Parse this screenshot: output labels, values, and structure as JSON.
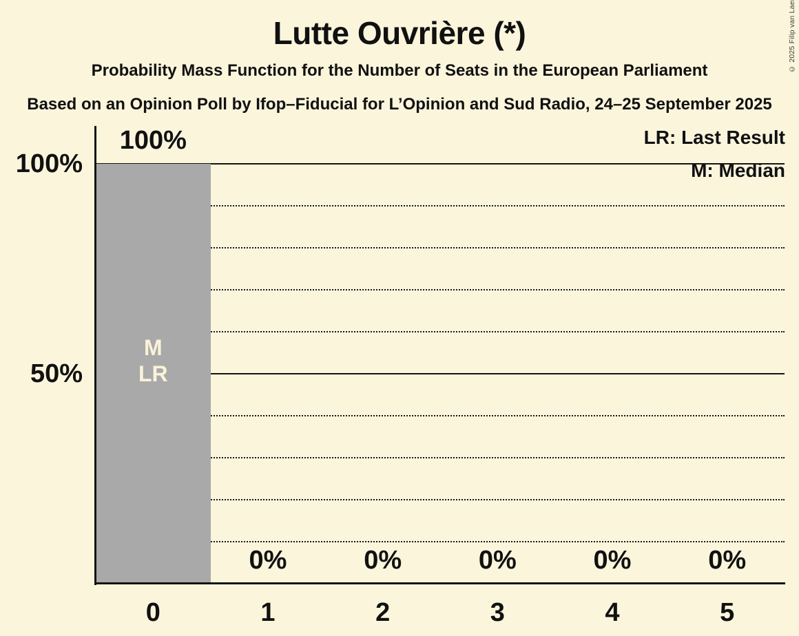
{
  "title": "Lutte Ouvrière (*)",
  "subtitle": "Probability Mass Function for the Number of Seats in the European Parliament",
  "source_line": "Based on an Opinion Poll by Ifop–Fiducial for L’Opinion and Sud Radio, 24–25 September 2025",
  "copyright": "© 2025 Filip van Laenen",
  "legend": {
    "last_result": "LR: Last Result",
    "median": "M: Median"
  },
  "chart_data": {
    "type": "bar",
    "title": "Lutte Ouvrière (*)",
    "xlabel": "Number of Seats in the European Parliament",
    "ylabel": "Probability",
    "categories": [
      "0",
      "1",
      "2",
      "3",
      "4",
      "5"
    ],
    "values": [
      100,
      0,
      0,
      0,
      0,
      0
    ],
    "bar_labels": [
      "100%",
      "0%",
      "0%",
      "0%",
      "0%",
      "0%"
    ],
    "annotations": [
      {
        "category": "0",
        "lines": [
          "M",
          "LR"
        ]
      }
    ],
    "y_axis_ticks": [
      {
        "value": 100,
        "label": "100%"
      },
      {
        "value": 50,
        "label": "50%"
      }
    ],
    "gridlines_solid": [
      100,
      50
    ],
    "gridlines_dotted": [
      90,
      80,
      70,
      60,
      40,
      30,
      20,
      10
    ],
    "ylim": [
      0,
      100
    ],
    "grid": true,
    "legend_position": "top-right",
    "colors": {
      "background": "#fbf5dc",
      "bar": "#a9a9a9",
      "text": "#111111",
      "annotation_text": "#faf3da"
    }
  }
}
